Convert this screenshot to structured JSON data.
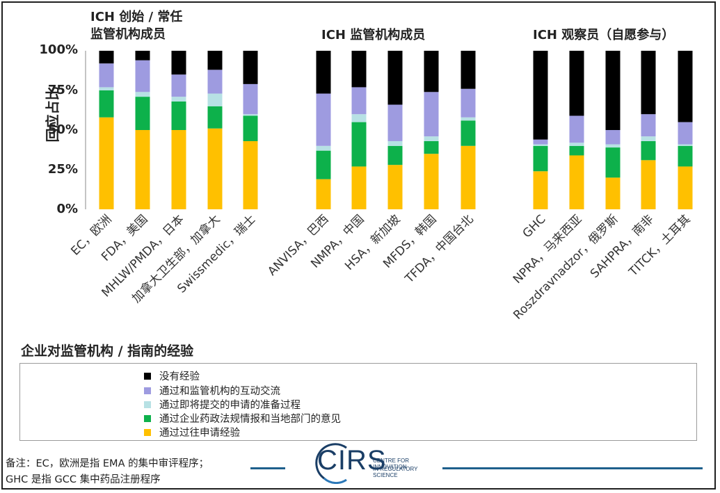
{
  "chart_data": {
    "type": "bar",
    "stacked": true,
    "ylabel": "回应占比",
    "yticks": [
      "0%",
      "25%",
      "50%",
      "75%",
      "100%"
    ],
    "ylim": [
      0,
      100
    ],
    "groups": [
      {
        "label_line1": "ICH 创始 / 常任",
        "label_line2": "监管机构成员",
        "categories": [
          "EC，欧洲",
          "FDA，美国",
          "MHLW/PMDA，日本",
          "加拿大卫生部，加拿大",
          "Swissmedic，瑞士"
        ]
      },
      {
        "label_line1": "ICH 监管机构成员",
        "label_line2": "",
        "categories": [
          "ANVISA，巴西",
          "NMPA，中国",
          "HSA，新加坡",
          "MFDS，韩国",
          "TFDA，中国台北"
        ]
      },
      {
        "label_line1": "ICH 观察员（自愿参与）",
        "label_line2": "",
        "categories": [
          "GHC",
          "NPRA，马来西亚",
          "Roszdravnadzor，俄罗斯",
          "SAHPRA，南非",
          "TITCK，土耳其"
        ]
      }
    ],
    "series": [
      {
        "name": "通过过往申请经验",
        "color": "#FFC000",
        "values": [
          58,
          50,
          50,
          51,
          43,
          19,
          27,
          28,
          35,
          40,
          24,
          34,
          20,
          31,
          27
        ]
      },
      {
        "name": "通过企业药政法规情报和当地部门的意见",
        "color": "#0DB14B",
        "values": [
          17,
          21,
          18,
          14,
          16,
          18,
          28,
          12,
          8,
          16,
          16,
          6,
          19,
          12,
          13
        ]
      },
      {
        "name": "通过即将提交的申请的准备过程",
        "color": "#B7E1E4",
        "values": [
          2,
          3,
          3,
          8,
          1,
          3,
          5,
          3,
          3,
          2,
          1,
          2,
          2,
          3,
          1
        ]
      },
      {
        "name": "通过和监管机构的互动交流",
        "color": "#9E9BE0",
        "values": [
          15,
          20,
          14,
          15,
          19,
          33,
          17,
          23,
          28,
          18,
          3,
          17,
          9,
          14,
          14
        ]
      },
      {
        "name": "没有经验",
        "color": "#000000",
        "values": [
          8,
          6,
          15,
          12,
          21,
          27,
          23,
          34,
          26,
          24,
          56,
          41,
          50,
          40,
          45
        ]
      }
    ]
  },
  "legend": {
    "title": "企业对监管机构 / 指南的经验",
    "items": [
      {
        "label": "没有经验",
        "color": "#000000"
      },
      {
        "label": "通过和监管机构的互动交流",
        "color": "#9E9BE0"
      },
      {
        "label": "通过即将提交的申请的准备过程",
        "color": "#B7E1E4"
      },
      {
        "label": "通过企业药政法规情报和当地部门的意见",
        "color": "#0DB14B"
      },
      {
        "label": "通过过往申请经验",
        "color": "#FFC000"
      }
    ]
  },
  "footnote": {
    "line1": "备注：EC，欧洲是指 EMA 的集中审评程序；",
    "line2": "GHC 是指 GCC 集中药品注册程序"
  },
  "logo": {
    "text": "CIRS",
    "sub1": "CENTRE FOR INNOVATION",
    "sub2": "IN REGULATORY SCIENCE"
  }
}
